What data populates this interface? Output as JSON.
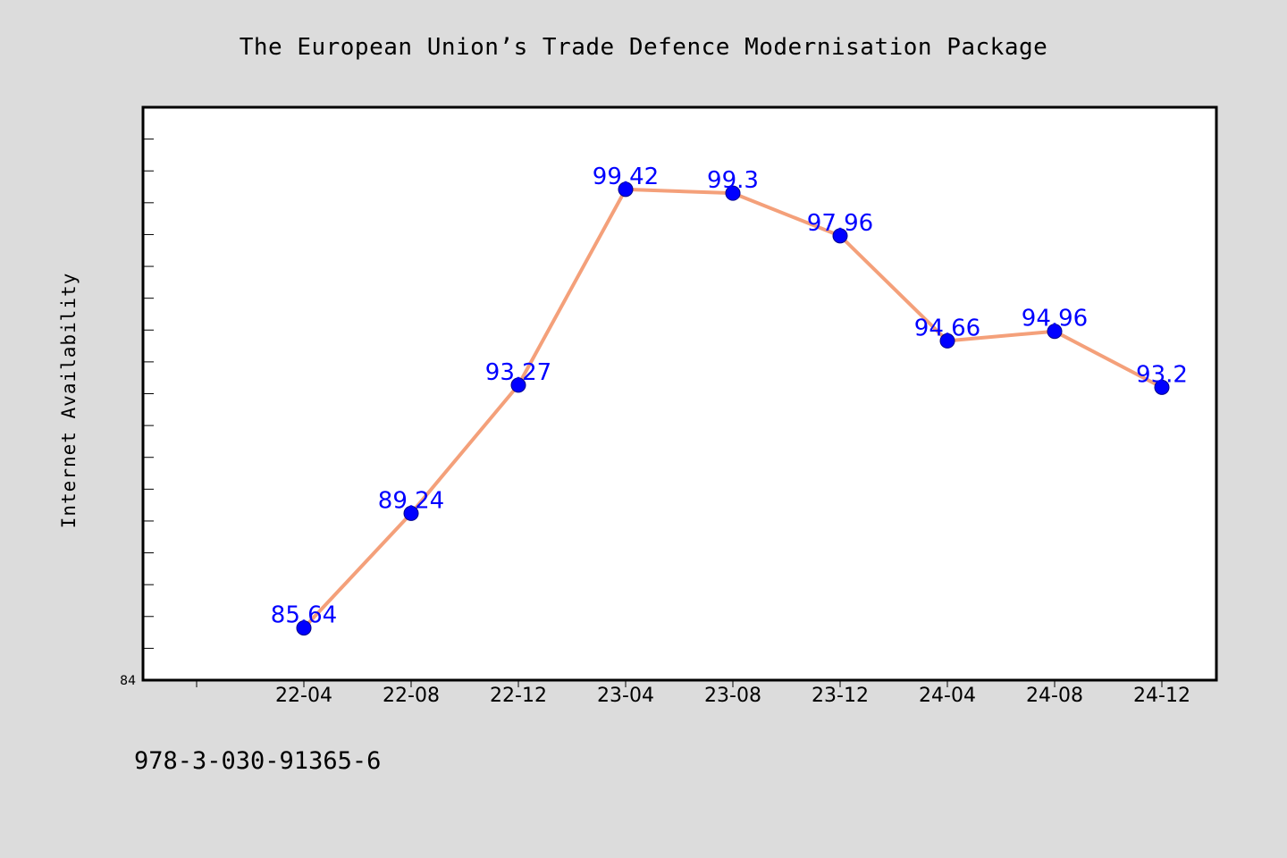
{
  "chart_data": {
    "type": "line",
    "title": "The European Union’s Trade Defence Modernisation Package",
    "xlabel": "",
    "ylabel": "Internet Availability",
    "categories": [
      "22-04",
      "22-08",
      "22-12",
      "23-04",
      "23-08",
      "23-12",
      "24-04",
      "24-08",
      "24-12"
    ],
    "values": [
      85.64,
      89.24,
      93.27,
      99.42,
      99.3,
      97.96,
      94.66,
      94.96,
      93.2
    ],
    "data_labels": [
      "85.64",
      "89.24",
      "93.27",
      "99.42",
      "99.3",
      "97.96",
      "94.66",
      "94.96",
      "93.2"
    ],
    "ylim": [
      84,
      102
    ],
    "yticks_labeled": [
      "84"
    ],
    "grid": false,
    "legend": "none",
    "line_color": "#f4a07a",
    "marker_color": "#0000ff",
    "label_color": "#0000ff"
  },
  "footer": {
    "isbn": "978-3-030-91365-6"
  }
}
